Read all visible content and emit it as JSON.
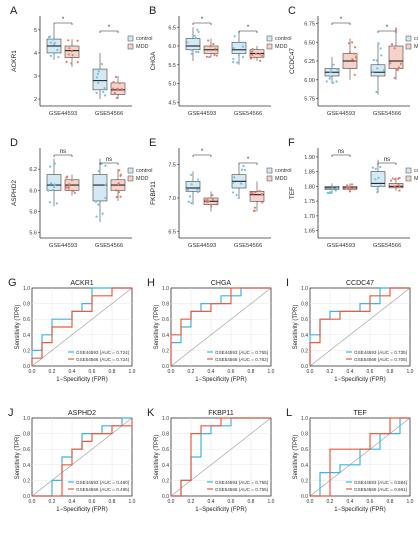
{
  "colors": {
    "control": "#6fc3df",
    "mdd": "#e8796a",
    "roc_blue": "#3fb4e0",
    "roc_red": "#ee5a3e",
    "box_blue": "#d4e9f3",
    "box_red": "#f7d2c8",
    "axis": "#333333",
    "grid": "#e6e6e6",
    "diag": "#999999"
  },
  "chart_data": [
    {
      "type": "box",
      "panel": "A",
      "ylabel": "ACKR1",
      "categories": [
        "GSE44593",
        "GSE54566"
      ],
      "legend": [
        "control",
        "MDD"
      ],
      "yticks": [
        "2",
        "3",
        "4",
        "5"
      ],
      "ylim": [
        1.7,
        5.6
      ],
      "groups": [
        {
          "category": "GSE44593",
          "control": {
            "q1": 4.0,
            "median": 4.3,
            "q3": 4.6,
            "min": 3.7,
            "max": 5.2
          },
          "mdd": {
            "q1": 3.8,
            "median": 4.1,
            "q3": 4.3,
            "min": 3.4,
            "max": 4.6
          }
        },
        {
          "category": "GSE54566",
          "control": {
            "q1": 2.4,
            "median": 2.8,
            "q3": 3.3,
            "min": 2.0,
            "max": 4.0
          },
          "mdd": {
            "q1": 2.2,
            "median": 2.4,
            "q3": 2.7,
            "min": 2.0,
            "max": 3.0
          }
        }
      ],
      "significance": [
        "*",
        "*"
      ]
    },
    {
      "type": "box",
      "panel": "B",
      "ylabel": "CHGA",
      "categories": [
        "GSE44593",
        "GSE54566"
      ],
      "legend": [
        "control",
        "MDD"
      ],
      "yticks": [
        "4.5",
        "5.0",
        "5.5",
        "6.0",
        "6.5"
      ],
      "ylim": [
        4.4,
        6.8
      ],
      "groups": [
        {
          "category": "GSE44593",
          "control": {
            "q1": 5.9,
            "median": 6.0,
            "q3": 6.2,
            "min": 5.6,
            "max": 6.5
          },
          "mdd": {
            "q1": 5.8,
            "median": 5.9,
            "q3": 6.0,
            "min": 5.7,
            "max": 6.2
          }
        },
        {
          "category": "GSE54566",
          "control": {
            "q1": 5.8,
            "median": 5.9,
            "q3": 6.1,
            "min": 5.5,
            "max": 6.4
          },
          "mdd": {
            "q1": 5.7,
            "median": 5.8,
            "q3": 5.9,
            "min": 5.6,
            "max": 6.0
          }
        }
      ],
      "significance": [
        "*",
        "*"
      ]
    },
    {
      "type": "box",
      "panel": "C",
      "ylabel": "CCDC47",
      "categories": [
        "GSE44593",
        "GSE54566"
      ],
      "legend": [
        "control",
        "MDD"
      ],
      "yticks": [
        "5.75",
        "6.00",
        "6.25",
        "6.50",
        "6.75"
      ],
      "ylim": [
        5.65,
        6.85
      ],
      "groups": [
        {
          "category": "GSE44593",
          "control": {
            "q1": 6.05,
            "median": 6.1,
            "q3": 6.15,
            "min": 5.95,
            "max": 6.3
          },
          "mdd": {
            "q1": 6.15,
            "median": 6.25,
            "q3": 6.35,
            "min": 6.0,
            "max": 6.55
          }
        },
        {
          "category": "GSE54566",
          "control": {
            "q1": 6.05,
            "median": 6.1,
            "q3": 6.2,
            "min": 5.8,
            "max": 6.5
          },
          "mdd": {
            "q1": 6.15,
            "median": 6.25,
            "q3": 6.45,
            "min": 6.0,
            "max": 6.7
          }
        }
      ],
      "significance": [
        "*",
        "*"
      ]
    },
    {
      "type": "box",
      "panel": "D",
      "ylabel": "ASPHD2",
      "categories": [
        "GSE44593",
        "GSE54566"
      ],
      "legend": [
        "control",
        "MDD"
      ],
      "yticks": [
        "5.6",
        "5.8",
        "6.0",
        "6.2"
      ],
      "ylim": [
        5.55,
        6.4
      ],
      "groups": [
        {
          "category": "GSE44593",
          "control": {
            "q1": 6.0,
            "median": 6.05,
            "q3": 6.15,
            "min": 5.85,
            "max": 6.3
          },
          "mdd": {
            "q1": 6.0,
            "median": 6.05,
            "q3": 6.1,
            "min": 5.95,
            "max": 6.15
          }
        },
        {
          "category": "GSE54566",
          "control": {
            "q1": 5.9,
            "median": 6.05,
            "q3": 6.15,
            "min": 5.7,
            "max": 6.3
          },
          "mdd": {
            "q1": 6.0,
            "median": 6.05,
            "q3": 6.1,
            "min": 5.9,
            "max": 6.2
          }
        }
      ],
      "significance": [
        "ns",
        "ns"
      ]
    },
    {
      "type": "box",
      "panel": "E",
      "ylabel": "FKBP11",
      "categories": [
        "GSE44593",
        "GSE54566"
      ],
      "legend": [
        "control",
        "MDD"
      ],
      "yticks": [
        "6.5",
        "7.0",
        "7.5"
      ],
      "ylim": [
        6.4,
        7.75
      ],
      "groups": [
        {
          "category": "GSE44593",
          "control": {
            "q1": 7.1,
            "median": 7.15,
            "q3": 7.25,
            "min": 6.9,
            "max": 7.4
          },
          "mdd": {
            "q1": 6.9,
            "median": 6.95,
            "q3": 7.0,
            "min": 6.8,
            "max": 7.1
          }
        },
        {
          "category": "GSE54566",
          "control": {
            "q1": 7.15,
            "median": 7.25,
            "q3": 7.35,
            "min": 7.0,
            "max": 7.5
          },
          "mdd": {
            "q1": 6.95,
            "median": 7.05,
            "q3": 7.1,
            "min": 6.8,
            "max": 7.25
          }
        }
      ],
      "significance": [
        "*",
        "*"
      ]
    },
    {
      "type": "box",
      "panel": "F",
      "ylabel": "TEF",
      "categories": [
        "GSE44593",
        "GSE54566"
      ],
      "legend": [
        "control",
        "MDD"
      ],
      "yticks": [
        "1.65",
        "1.70",
        "1.75",
        "1.80",
        "1.85",
        "1.90"
      ],
      "ylim": [
        1.625,
        1.93
      ],
      "groups": [
        {
          "category": "GSE44593",
          "control": {
            "q1": 1.79,
            "median": 1.795,
            "q3": 1.8,
            "min": 1.775,
            "max": 1.81
          },
          "mdd": {
            "q1": 1.79,
            "median": 1.795,
            "q3": 1.8,
            "min": 1.78,
            "max": 1.81
          }
        },
        {
          "category": "GSE54566",
          "control": {
            "q1": 1.8,
            "median": 1.81,
            "q3": 1.85,
            "min": 1.78,
            "max": 1.89
          },
          "mdd": {
            "q1": 1.795,
            "median": 1.8,
            "q3": 1.81,
            "min": 1.785,
            "max": 1.83
          }
        }
      ],
      "significance": [
        "ns",
        "ns"
      ]
    },
    {
      "type": "line",
      "panel": "G",
      "title": "ACKR1",
      "xlabel": "1−Specificity (FPR)",
      "ylabel": "Sensitivity (TPR)",
      "ticks": [
        "0.0",
        "0.2",
        "0.4",
        "0.6",
        "0.8",
        "1.0"
      ],
      "series": [
        {
          "name": "GSE44593 (AUC = 0.724)",
          "x": [
            0,
            0,
            0.1,
            0.1,
            0.2,
            0.2,
            0.4,
            0.4,
            0.5,
            0.5,
            0.6,
            0.6,
            0.8,
            0.8,
            1.0
          ],
          "y": [
            0,
            0.2,
            0.2,
            0.4,
            0.4,
            0.6,
            0.6,
            0.7,
            0.7,
            0.8,
            0.8,
            1.0,
            1.0,
            1.0,
            1.0
          ]
        },
        {
          "name": "GSE54566 (AUC = 0.724)",
          "x": [
            0,
            0,
            0.1,
            0.1,
            0.2,
            0.2,
            0.4,
            0.4,
            0.6,
            0.6,
            0.8,
            0.8,
            1.0
          ],
          "y": [
            0,
            0.1,
            0.1,
            0.3,
            0.3,
            0.5,
            0.5,
            0.7,
            0.7,
            0.9,
            0.9,
            1.0,
            1.0
          ]
        }
      ]
    },
    {
      "type": "line",
      "panel": "H",
      "title": "CHGA",
      "xlabel": "1−Specificity (FPR)",
      "ylabel": "Sensitivity (TPR)",
      "ticks": [
        "0.0",
        "0.2",
        "0.4",
        "0.6",
        "0.8",
        "1.0"
      ],
      "series": [
        {
          "name": "GSE44593 (AUC = 0.755)",
          "x": [
            0,
            0,
            0.1,
            0.1,
            0.2,
            0.2,
            0.3,
            0.3,
            0.5,
            0.5,
            0.7,
            0.7,
            1.0
          ],
          "y": [
            0,
            0.3,
            0.3,
            0.5,
            0.5,
            0.7,
            0.7,
            0.8,
            0.8,
            0.9,
            0.9,
            1.0,
            1.0
          ]
        },
        {
          "name": "GSE54566 (AUC = 0.762)",
          "x": [
            0,
            0,
            0.1,
            0.1,
            0.2,
            0.2,
            0.4,
            0.4,
            0.6,
            0.6,
            1.0
          ],
          "y": [
            0,
            0.4,
            0.4,
            0.6,
            0.6,
            0.7,
            0.7,
            0.8,
            0.8,
            1.0,
            1.0
          ]
        }
      ]
    },
    {
      "type": "line",
      "panel": "I",
      "title": "CCDC47",
      "xlabel": "1−Specificity (FPR)",
      "ylabel": "Sensitivity (TPR)",
      "ticks": [
        "0.0",
        "0.2",
        "0.4",
        "0.6",
        "0.8",
        "1.0"
      ],
      "series": [
        {
          "name": "GSE44593 (AUC = 0.735)",
          "x": [
            0,
            0,
            0.1,
            0.1,
            0.2,
            0.2,
            0.5,
            0.5,
            0.7,
            0.7,
            1.0
          ],
          "y": [
            0,
            0.4,
            0.4,
            0.6,
            0.6,
            0.7,
            0.7,
            0.8,
            0.8,
            1.0,
            1.0
          ]
        },
        {
          "name": "GSE54566 (AUC = 0.705)",
          "x": [
            0,
            0,
            0.1,
            0.1,
            0.3,
            0.3,
            0.6,
            0.6,
            0.8,
            0.8,
            1.0
          ],
          "y": [
            0,
            0.3,
            0.3,
            0.6,
            0.6,
            0.7,
            0.7,
            0.9,
            0.9,
            1.0,
            1.0
          ]
        }
      ]
    },
    {
      "type": "line",
      "panel": "J",
      "title": "ASPHD2",
      "xlabel": "1−Specificity (FPR)",
      "ylabel": "Sensitivity (TPR)",
      "ticks": [
        "0.0",
        "0.2",
        "0.4",
        "0.6",
        "0.8",
        "1.0"
      ],
      "series": [
        {
          "name": "GSE44593 (AUC = 0.480)",
          "x": [
            0,
            0.2,
            0.2,
            0.3,
            0.3,
            0.4,
            0.4,
            0.5,
            0.5,
            0.7,
            0.7,
            0.9,
            0.9,
            1.0
          ],
          "y": [
            0,
            0,
            0.2,
            0.2,
            0.5,
            0.5,
            0.6,
            0.6,
            0.8,
            0.8,
            0.9,
            0.9,
            1.0,
            1.0
          ]
        },
        {
          "name": "GSE54566 (AUC = 0.495)",
          "x": [
            0,
            0.3,
            0.3,
            0.4,
            0.4,
            0.5,
            0.5,
            0.6,
            0.6,
            0.8,
            0.8,
            1.0,
            1.0
          ],
          "y": [
            0,
            0,
            0.4,
            0.4,
            0.6,
            0.6,
            0.7,
            0.7,
            0.8,
            0.8,
            0.9,
            0.9,
            1.0
          ]
        }
      ]
    },
    {
      "type": "line",
      "panel": "K",
      "title": "FKBP11",
      "xlabel": "1−Specificity (FPR)",
      "ylabel": "Sensitivity (TPR)",
      "ticks": [
        "0.0",
        "0.2",
        "0.4",
        "0.6",
        "0.8",
        "1.0"
      ],
      "series": [
        {
          "name": "GSE44593 (AUC = 0.755)",
          "x": [
            0,
            0.1,
            0.1,
            0.2,
            0.2,
            0.3,
            0.3,
            0.4,
            0.4,
            0.6,
            0.6,
            1.0
          ],
          "y": [
            0,
            0,
            0.2,
            0.2,
            0.5,
            0.5,
            0.8,
            0.8,
            0.9,
            0.9,
            1.0,
            1.0
          ]
        },
        {
          "name": "GSE54566 (AUC = 0.755)",
          "x": [
            0,
            0.1,
            0.1,
            0.2,
            0.2,
            0.3,
            0.3,
            0.5,
            0.5,
            1.0
          ],
          "y": [
            0,
            0,
            0.2,
            0.2,
            0.8,
            0.8,
            0.9,
            0.9,
            1.0,
            1.0
          ]
        }
      ]
    },
    {
      "type": "line",
      "panel": "L",
      "title": "TEF",
      "xlabel": "1−Specificity (FPR)",
      "ylabel": "Sensitivity (TPR)",
      "ticks": [
        "0.0",
        "0.2",
        "0.4",
        "0.6",
        "0.8",
        "1.0"
      ],
      "series": [
        {
          "name": "GSE44593 (AUC = 0.584)",
          "x": [
            0,
            0.1,
            0.1,
            0.3,
            0.3,
            0.5,
            0.5,
            0.7,
            0.7,
            0.9,
            0.9,
            1.0
          ],
          "y": [
            0,
            0,
            0.3,
            0.3,
            0.4,
            0.4,
            0.6,
            0.6,
            0.8,
            0.8,
            1.0,
            1.0
          ]
        },
        {
          "name": "GSE54566 (AUC = 0.661)",
          "x": [
            0,
            0.2,
            0.2,
            0.6,
            0.6,
            0.8,
            0.8,
            1.0
          ],
          "y": [
            0,
            0,
            0.6,
            0.6,
            0.8,
            0.8,
            1.0,
            1.0
          ]
        }
      ]
    }
  ]
}
